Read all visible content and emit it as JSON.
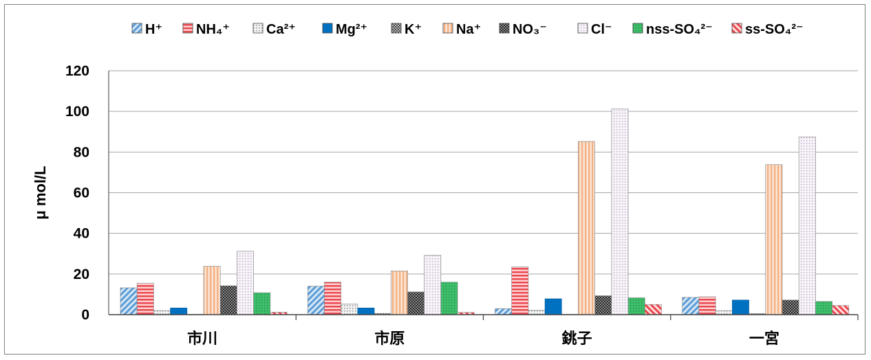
{
  "chart_data": {
    "type": "bar",
    "ylabel": "μ mol/L",
    "xlabel": "",
    "ylim": [
      0,
      120
    ],
    "yticks": [
      "0",
      "20",
      "40",
      "60",
      "80",
      "100",
      "120"
    ],
    "grid": true,
    "legend_position": "top",
    "categories": [
      "市川",
      "市原",
      "銚子",
      "一宮"
    ],
    "series": [
      {
        "name": "H⁺",
        "values": [
          13.2,
          14.0,
          3.0,
          8.5
        ],
        "color": "#9dc3e6",
        "pattern": "diag-blue"
      },
      {
        "name": "NH₄⁺",
        "values": [
          15.5,
          16.0,
          23.5,
          8.8
        ],
        "color": "#ff7c80",
        "pattern": "hstripe-red"
      },
      {
        "name": "Ca²⁺",
        "values": [
          2.0,
          5.3,
          2.2,
          2.0
        ],
        "color": "#d9d9d9",
        "pattern": "dots-gray"
      },
      {
        "name": "Mg²⁺",
        "values": [
          3.3,
          3.3,
          7.8,
          7.2
        ],
        "color": "#0070c0",
        "pattern": "solid-blue"
      },
      {
        "name": "K⁺",
        "values": [
          0.2,
          0.6,
          0.2,
          0.5
        ],
        "color": "#7f7f7f",
        "pattern": "checker-gray"
      },
      {
        "name": "Na⁺",
        "values": [
          23.8,
          21.5,
          85.2,
          73.8
        ],
        "color": "#f4b183",
        "pattern": "vstripe-orange"
      },
      {
        "name": "NO₃⁻",
        "values": [
          14.2,
          11.2,
          9.3,
          7.2
        ],
        "color": "#595959",
        "pattern": "checker-dark"
      },
      {
        "name": "Cl⁻",
        "values": [
          31.2,
          29.2,
          101.2,
          87.5
        ],
        "color": "#eee6f2",
        "pattern": "dots-lavender"
      },
      {
        "name": "nss-SO₄²⁻",
        "values": [
          10.8,
          16.0,
          8.3,
          6.5
        ],
        "color": "#3fbf6c",
        "pattern": "dots-green"
      },
      {
        "name": "ss-SO₄²⁻",
        "values": [
          1.2,
          1.1,
          5.0,
          4.5
        ],
        "color": "#ff7c80",
        "pattern": "diag-red"
      }
    ]
  }
}
